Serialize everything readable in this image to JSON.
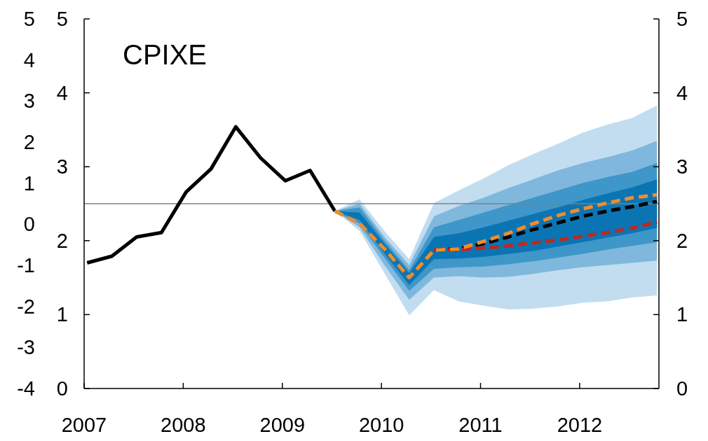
{
  "chart_data": {
    "type": "line",
    "title": "CPIXE",
    "x": [
      2007.03,
      2007.28,
      2007.53,
      2007.78,
      2008.03,
      2008.28,
      2008.53,
      2008.78,
      2009.03,
      2009.28,
      2009.53,
      2009.78,
      2010.03,
      2010.28,
      2010.53,
      2010.78,
      2011.03,
      2011.28,
      2011.53,
      2011.78,
      2012.03,
      2012.28,
      2012.53,
      2012.78
    ],
    "xlim": [
      2007,
      2012.8
    ],
    "xticks": [
      2007,
      2008,
      2009,
      2010,
      2011,
      2012
    ],
    "ylim": [
      0,
      5
    ],
    "yticks": [
      0,
      1,
      2,
      3,
      4,
      5
    ],
    "y2lim": [
      0,
      5
    ],
    "y2ticks": [
      0,
      1,
      2,
      3,
      4,
      5
    ],
    "y3lim": [
      -4,
      5
    ],
    "y3ticks": [
      -4,
      -3,
      -2,
      -1,
      0,
      1,
      2,
      3,
      4,
      5
    ],
    "grid": false,
    "marker": "none",
    "ref_lines": [
      {
        "axis": "y",
        "value": 2.5,
        "color": "#808080"
      }
    ],
    "series": [
      {
        "type": "area",
        "color": "#c2ddf0",
        "values": [
          null,
          null,
          null,
          null,
          null,
          null,
          null,
          null,
          null,
          null,
          null,
          null,
          null,
          null,
          null,
          null,
          null,
          null,
          null,
          null,
          null,
          null,
          null,
          null
        ],
        "lower": [
          null,
          null,
          null,
          null,
          null,
          null,
          null,
          null,
          null,
          null,
          2.4,
          2.13,
          1.56,
          0.99,
          1.33,
          1.18,
          1.12,
          1.07,
          1.08,
          1.11,
          1.16,
          1.18,
          1.23,
          1.26
        ],
        "upper": [
          null,
          null,
          null,
          null,
          null,
          null,
          null,
          null,
          null,
          null,
          2.4,
          2.56,
          2.13,
          1.75,
          2.51,
          2.68,
          2.84,
          3.02,
          3.17,
          3.31,
          3.46,
          3.57,
          3.66,
          3.83
        ]
      },
      {
        "type": "area",
        "color": "#7fb8dc",
        "values": [
          null,
          null,
          null,
          null,
          null,
          null,
          null,
          null,
          null,
          null,
          null,
          null,
          null,
          null,
          null,
          null,
          null,
          null,
          null,
          null,
          null,
          null,
          null,
          null
        ],
        "lower": [
          null,
          null,
          null,
          null,
          null,
          null,
          null,
          null,
          null,
          null,
          2.4,
          2.18,
          1.67,
          1.2,
          1.5,
          1.52,
          1.5,
          1.51,
          1.55,
          1.6,
          1.64,
          1.67,
          1.7,
          1.73
        ],
        "upper": [
          null,
          null,
          null,
          null,
          null,
          null,
          null,
          null,
          null,
          null,
          2.4,
          2.5,
          2.05,
          1.67,
          2.33,
          2.47,
          2.58,
          2.71,
          2.83,
          2.95,
          3.05,
          3.13,
          3.22,
          3.35
        ]
      },
      {
        "type": "area",
        "color": "#3f96c9",
        "values": [
          null,
          null,
          null,
          null,
          null,
          null,
          null,
          null,
          null,
          null,
          null,
          null,
          null,
          null,
          null,
          null,
          null,
          null,
          null,
          null,
          null,
          null,
          null,
          null
        ],
        "lower": [
          null,
          null,
          null,
          null,
          null,
          null,
          null,
          null,
          null,
          null,
          2.4,
          2.23,
          1.77,
          1.32,
          1.62,
          1.64,
          1.65,
          1.68,
          1.72,
          1.77,
          1.82,
          1.88,
          1.93,
          1.98
        ],
        "upper": [
          null,
          null,
          null,
          null,
          null,
          null,
          null,
          null,
          null,
          null,
          2.4,
          2.45,
          2.0,
          1.6,
          2.18,
          2.28,
          2.38,
          2.48,
          2.58,
          2.68,
          2.78,
          2.86,
          2.93,
          3.05
        ]
      },
      {
        "type": "area",
        "color": "#0b75b4",
        "values": [
          null,
          null,
          null,
          null,
          null,
          null,
          null,
          null,
          null,
          null,
          null,
          null,
          null,
          null,
          null,
          null,
          null,
          null,
          null,
          null,
          null,
          null,
          null,
          null
        ],
        "lower": [
          null,
          null,
          null,
          null,
          null,
          null,
          null,
          null,
          null,
          null,
          2.4,
          2.28,
          1.83,
          1.4,
          1.75,
          1.76,
          1.78,
          1.82,
          1.86,
          1.92,
          1.98,
          2.04,
          2.1,
          2.17
        ],
        "upper": [
          null,
          null,
          null,
          null,
          null,
          null,
          null,
          null,
          null,
          null,
          2.4,
          2.38,
          1.96,
          1.56,
          2.05,
          2.1,
          2.18,
          2.27,
          2.36,
          2.45,
          2.55,
          2.64,
          2.72,
          2.83
        ]
      },
      {
        "type": "line",
        "color": "#000000",
        "line_style": "solid",
        "values": [
          1.7,
          1.79,
          2.05,
          2.11,
          2.66,
          2.97,
          3.54,
          3.12,
          2.81,
          2.95,
          2.4,
          null,
          null,
          null,
          null,
          null,
          null,
          null,
          null,
          null,
          null,
          null,
          null,
          null
        ]
      },
      {
        "type": "line",
        "color": "#000000",
        "line_style": "dashed",
        "values": [
          null,
          null,
          null,
          null,
          null,
          null,
          null,
          null,
          null,
          null,
          null,
          null,
          null,
          null,
          1.87,
          1.89,
          1.96,
          2.05,
          2.15,
          2.24,
          2.33,
          2.4,
          2.46,
          2.53
        ]
      },
      {
        "type": "line",
        "color": "#c0281e",
        "line_style": "dashed",
        "values": [
          null,
          null,
          null,
          null,
          null,
          null,
          null,
          null,
          null,
          null,
          null,
          null,
          null,
          null,
          1.87,
          1.88,
          1.9,
          1.93,
          1.97,
          2.01,
          2.06,
          2.11,
          2.17,
          2.25
        ]
      },
      {
        "type": "line",
        "color": "#f28c28",
        "line_style": "dashed",
        "values": [
          null,
          null,
          null,
          null,
          null,
          null,
          null,
          null,
          null,
          null,
          2.4,
          2.23,
          1.89,
          1.5,
          1.87,
          1.89,
          1.99,
          2.1,
          2.23,
          2.34,
          2.43,
          2.51,
          2.58,
          2.62
        ]
      }
    ]
  }
}
